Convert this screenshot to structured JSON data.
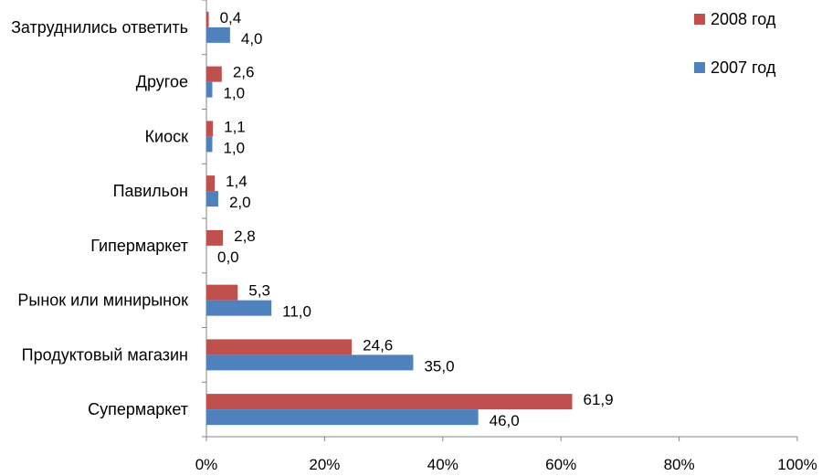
{
  "chart_data": {
    "type": "bar",
    "orientation": "horizontal",
    "categories": [
      "Затруднились ответить",
      "Другое",
      "Киоск",
      "Павильон",
      "Гипермаркет",
      "Рынок или минирынок",
      "Продуктовый магазин",
      "Супермаркет"
    ],
    "series": [
      {
        "name": "2008 год",
        "color": "#C0504D",
        "values": [
          0.4,
          2.6,
          1.1,
          1.4,
          2.8,
          5.3,
          24.6,
          61.9
        ],
        "labels": [
          "0,4",
          "2,6",
          "1,1",
          "1,4",
          "2,8",
          "5,3",
          "24,6",
          "61,9"
        ]
      },
      {
        "name": "2007 год",
        "color": "#4F81BD",
        "values": [
          4.0,
          1.0,
          1.0,
          2.0,
          0.0,
          11.0,
          35.0,
          46.0
        ],
        "labels": [
          "4,0",
          "1,0",
          "1,0",
          "2,0",
          "0,0",
          "11,0",
          "35,0",
          "46,0"
        ]
      }
    ],
    "xlim": [
      0,
      100
    ],
    "x_ticks": [
      0,
      20,
      40,
      60,
      80,
      100
    ],
    "x_tick_labels": [
      "0%",
      "20%",
      "40%",
      "60%",
      "80%",
      "100%"
    ],
    "grid": false,
    "legend_position": "top-right"
  }
}
